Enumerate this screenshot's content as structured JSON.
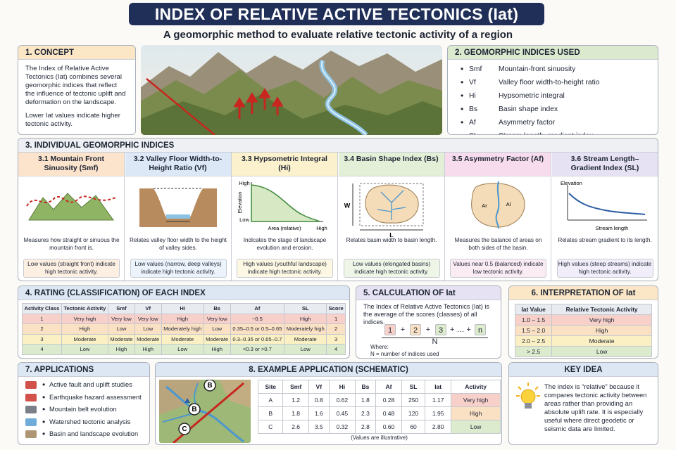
{
  "header": {
    "title": "INDEX OF RELATIVE ACTIVE TECTONICS (Iat)",
    "subtitle": "A geomorphic method to evaluate relative tectonic activity of a region"
  },
  "concept": {
    "heading": "1. CONCEPT",
    "paragraphs": [
      "The Index of Relative Active Tectonics (Iat) combines several geomorphic indices that reflect the influence of tectonic uplift and deformation on the landscape.",
      "Lower Iat values indicate higher tectonic activity."
    ]
  },
  "indices_used": {
    "heading": "2. GEOMORPHIC INDICES USED",
    "items": [
      {
        "abbr": "Smf",
        "name": "Mountain-front sinuosity"
      },
      {
        "abbr": "Vf",
        "name": "Valley floor width-to-height ratio"
      },
      {
        "abbr": "Hi",
        "name": "Hypsometric integral"
      },
      {
        "abbr": "Bs",
        "name": "Basin shape index"
      },
      {
        "abbr": "Af",
        "name": "Asymmetry factor"
      },
      {
        "abbr": "SL",
        "name": "Stream length–gradient index"
      }
    ]
  },
  "individual": {
    "heading": "3. INDIVIDUAL GEOMORPHIC INDICES",
    "cards": [
      {
        "title": "3.1 Mountain Front Sinuosity (Smf)",
        "description": "Measures how straight or sinuous the mountain front is.",
        "note": "Low values (straight front) indicate high tectonic activity.",
        "labels": []
      },
      {
        "title": "3.2 Valley Floor Width-to-Height Ratio (Vf)",
        "description": "Relates valley floor width to the height of valley sides.",
        "note": "Low values (narrow, deep valleys) indicate high tectonic activity.",
        "labels": []
      },
      {
        "title": "3.3 Hypsometric Integral (Hi)",
        "description": "Indicates the stage of landscape evolution and erosion.",
        "note": "High values (youthful landscape) indicate high tectonic activity.",
        "labels": [
          "High",
          "Elevation",
          "Low",
          "Area (relative)",
          "High"
        ]
      },
      {
        "title": "3.4 Basin Shape Index (Bs)",
        "description": "Relates basin width to basin length.",
        "note": "Low values (elongated basins) indicate high tectonic activity.",
        "labels": [
          "W",
          "L"
        ]
      },
      {
        "title": "3.5 Asymmetry Factor (Af)",
        "description": "Measures the balance of areas on both sides of the basin.",
        "note": "Values near 0.5 (balanced) indicate low tectonic activity.",
        "labels": [
          "Ar",
          "Al"
        ]
      },
      {
        "title": "3.6 Stream Length–Gradient Index (SL)",
        "description": "Relates stream gradient to its length.",
        "note": "High values (steep streams) indicate high tectonic activity.",
        "labels": [
          "Elevation",
          "Stream length"
        ]
      }
    ]
  },
  "rating": {
    "heading": "4. RATING (CLASSIFICATION) OF EACH INDEX",
    "columns": [
      "Activity Class",
      "Tectonic Activity",
      "Smf",
      "Vf",
      "Hi",
      "Bs",
      "Af",
      "SL",
      "Score"
    ],
    "rows": [
      [
        "1",
        "Very high",
        "Very low",
        "Very low",
        "High",
        "Very low",
        "~0.5",
        "High",
        "1"
      ],
      [
        "2",
        "High",
        "Low",
        "Low",
        "Moderately high",
        "Low",
        "0.35–0.5 or 0.5–0.65",
        "Moderately high",
        "2"
      ],
      [
        "3",
        "Moderate",
        "Moderate",
        "Moderate",
        "Moderate",
        "Moderate",
        "0.3–0.35 or 0.65–0.7",
        "Moderate",
        "3"
      ],
      [
        "4",
        "Low",
        "High",
        "High",
        "Low",
        "High",
        "<0.3 or >0.7",
        "Low",
        "4"
      ]
    ],
    "footnote": "(Thresholds may vary slightly between studies and regions)"
  },
  "calculation": {
    "heading": "5. CALCULATION OF Iat",
    "text": "The Index of Relative Active Tectonics (Iat) is the average of the scores (classes) of all indices.",
    "formula": [
      "1",
      "+",
      "2",
      "+",
      "3",
      "+ … +",
      "n"
    ],
    "denominator": "N",
    "where": "Where:",
    "where_note": "N = number of indices used"
  },
  "interpretation": {
    "heading": "6. INTERPRETATION OF Iat",
    "columns": [
      "Iat Value",
      "Relative Tectonic Activity"
    ],
    "rows": [
      [
        "1.0 – 1.5",
        "Very high"
      ],
      [
        "1.5 – 2.0",
        "High"
      ],
      [
        "2.0 – 2.5",
        "Moderate"
      ],
      [
        "> 2.5",
        "Low"
      ]
    ]
  },
  "applications": {
    "heading": "7. APPLICATIONS",
    "items": [
      "Active fault and uplift studies",
      "Earthquake hazard assessment",
      "Mountain belt evolution",
      "Watershed tectonic analysis",
      "Basin and landscape evolution"
    ]
  },
  "example": {
    "heading": "8. EXAMPLE APPLICATION (SCHEMATIC)",
    "map_labels": [
      "B",
      "B",
      "C"
    ],
    "columns": [
      "Site",
      "Smf",
      "Vf",
      "Hi",
      "Bs",
      "Af",
      "SL",
      "Iat",
      "Activity"
    ],
    "rows": [
      [
        "A",
        "1.2",
        "0.8",
        "0.62",
        "1.8",
        "0.28",
        "250",
        "1.17",
        "Very high"
      ],
      [
        "B",
        "1.8",
        "1.6",
        "0.45",
        "2.3",
        "0.48",
        "120",
        "1.95",
        "High"
      ],
      [
        "C",
        "2.6",
        "3.5",
        "0.32",
        "2.8",
        "0.60",
        "60",
        "2.80",
        "Low"
      ]
    ],
    "footnote": "(Values are illustrative)"
  },
  "key_idea": {
    "heading": "KEY IDEA",
    "text": "The index is “relative” because it compares tectonic activity between areas rather than providing an absolute uplift rate. It is especially useful where direct geodetic or seismic data are limited."
  }
}
